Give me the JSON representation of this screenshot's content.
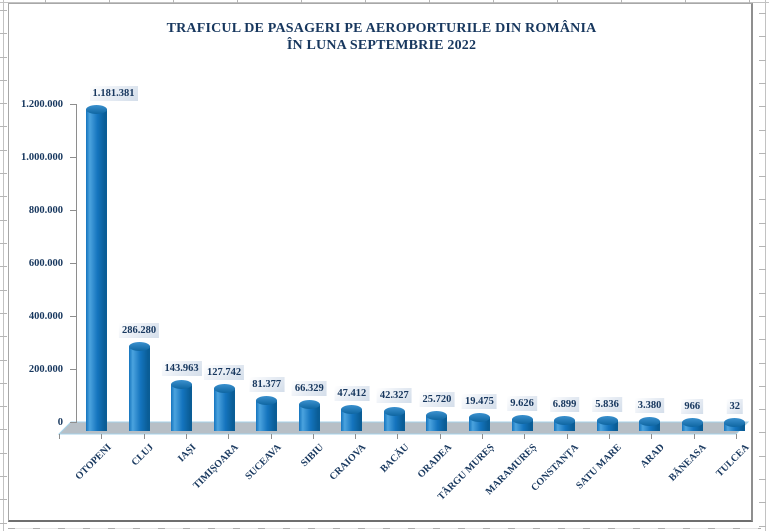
{
  "title": {
    "line1": "TRAFICUL DE PASAGERI PE AEROPORTURILE DIN ROMÂNIA",
    "line2": "ÎN LUNA SEPTEMBRIE 2022"
  },
  "chart_data": {
    "type": "bar",
    "style": "3d-cylinder-column",
    "title": "TRAFICUL DE PASAGERI PE AEROPORTURILE DIN ROMÂNIA ÎN LUNA SEPTEMBRIE 2022",
    "categories": [
      "OTOPENI",
      "CLUJ",
      "IAȘI",
      "TIMIȘOARA",
      "SUCEAVA",
      "SIBIU",
      "CRAIOVA",
      "BACĂU",
      "ORADEA",
      "TÂRGU MUREȘ",
      "MARAMUREȘ",
      "CONSTANȚA",
      "SATU MARE",
      "ARAD",
      "BĂNEASA",
      "TULCEA"
    ],
    "values": [
      1181381,
      286280,
      143963,
      127742,
      81377,
      66329,
      47412,
      42327,
      25720,
      19475,
      9626,
      6899,
      5836,
      3380,
      966,
      32
    ],
    "value_labels": [
      "1.181.381",
      "286.280",
      "143.963",
      "127.742",
      "81.377",
      "66.329",
      "47.412",
      "42.327",
      "25.720",
      "19.475",
      "9.626",
      "6.899",
      "5.836",
      "3.380",
      "966",
      "32"
    ],
    "xlabel": "",
    "ylabel": "",
    "y_axis": {
      "min": 0,
      "max": 1200000,
      "tick_values": [
        0,
        200000,
        400000,
        600000,
        800000,
        1000000,
        1200000
      ],
      "tick_labels": [
        "0",
        "200.000",
        "400.000",
        "600.000",
        "800.000",
        "1.000.000",
        "1.200.000"
      ]
    },
    "grid": false,
    "legend": "none",
    "colors": {
      "text": "#17375E",
      "bar_main": "#1474BE",
      "bar_highlight": "#4BA3DE",
      "bar_shadow": "#0A5D96",
      "floor_fill": "#B7BFC6",
      "floor_edge": "#A5D2E8",
      "axis": "#8E8E8E",
      "label_bg": "#D7E1EC"
    }
  }
}
